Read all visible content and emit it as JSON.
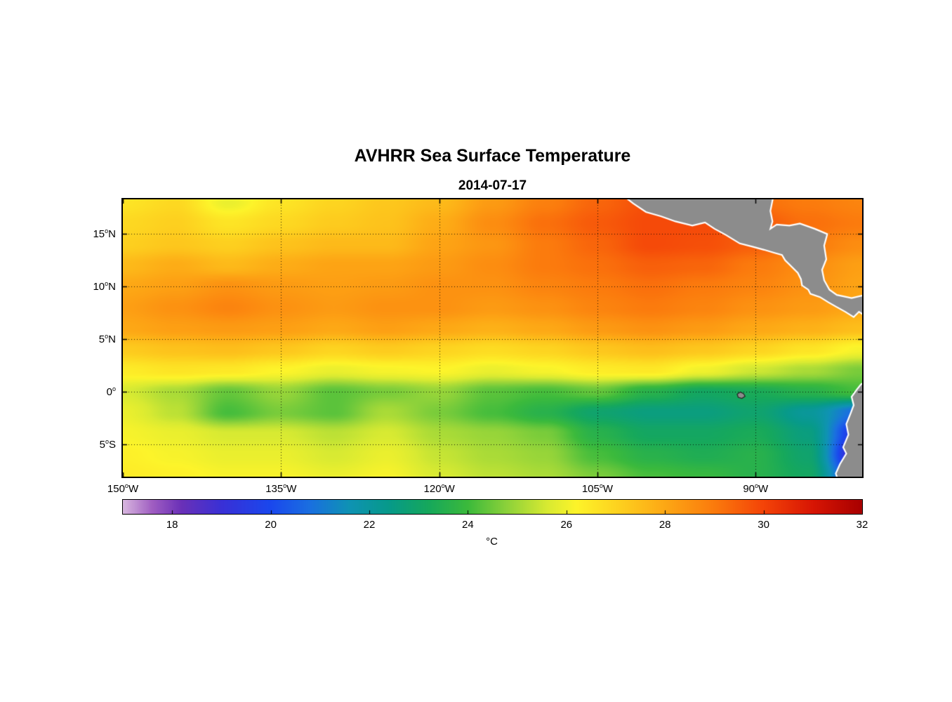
{
  "chart_data": {
    "type": "heatmap",
    "title": "AVHRR Sea Surface Temperature",
    "subtitle": "2014-07-17",
    "lon_range": [
      -150,
      -79.9
    ],
    "lat_range": [
      -8.1,
      18.3
    ],
    "x_ticks": [
      {
        "value": -150,
        "num": "150",
        "suffix": "W",
        "label": "150°W"
      },
      {
        "value": -135,
        "num": "135",
        "suffix": "W",
        "label": "135°W"
      },
      {
        "value": -120,
        "num": "120",
        "suffix": "W",
        "label": "120°W"
      },
      {
        "value": -105,
        "num": "105",
        "suffix": "W",
        "label": "105°W"
      },
      {
        "value": -90,
        "num": "90",
        "suffix": "W",
        "label": "90°W"
      }
    ],
    "y_ticks": [
      {
        "value": 15,
        "num": "15",
        "suffix": "N",
        "label": "15°N"
      },
      {
        "value": 10,
        "num": "10",
        "suffix": "N",
        "label": "10°N"
      },
      {
        "value": 5,
        "num": "5",
        "suffix": "N",
        "label": "5°N"
      },
      {
        "value": 0,
        "num": "0",
        "suffix": "",
        "label": "0°"
      },
      {
        "value": -5,
        "num": "5",
        "suffix": "S",
        "label": "5°S"
      }
    ],
    "grid_lines": {
      "lon": [
        -135,
        -120,
        -105,
        -90
      ],
      "lat": [
        15,
        10,
        5,
        0,
        -5
      ]
    },
    "grid": {
      "lon": [
        -150,
        -145,
        -140,
        -135,
        -130,
        -125,
        -120,
        -115,
        -110,
        -105,
        -100,
        -95,
        -90,
        -85,
        -80
      ],
      "lat": [
        18,
        16,
        14,
        12,
        10,
        8,
        6,
        4,
        2,
        0,
        -2,
        -4,
        -6,
        -8
      ],
      "units": "°C",
      "sst_c": [
        [
          26.6,
          26.9,
          25.9,
          26.6,
          27.0,
          27.3,
          27.6,
          28.3,
          28.9,
          29.4,
          29.8,
          29.6,
          29.2,
          29.0,
          28.8
        ],
        [
          26.9,
          27.1,
          26.6,
          26.9,
          27.2,
          27.4,
          27.9,
          28.6,
          29.2,
          29.6,
          29.9,
          29.9,
          29.6,
          29.2,
          29.0
        ],
        [
          27.1,
          27.3,
          27.1,
          27.4,
          27.6,
          27.6,
          28.1,
          28.4,
          29.0,
          29.4,
          29.9,
          29.8,
          29.5,
          29.0,
          28.6
        ],
        [
          27.6,
          27.9,
          27.6,
          27.9,
          28.1,
          28.1,
          28.3,
          28.6,
          29.0,
          29.2,
          29.5,
          29.4,
          29.0,
          28.6,
          28.2
        ],
        [
          28.0,
          28.2,
          28.5,
          28.3,
          28.2,
          28.3,
          28.5,
          28.5,
          28.8,
          29.0,
          29.2,
          29.0,
          28.8,
          28.5,
          28.1
        ],
        [
          28.2,
          28.5,
          28.8,
          28.5,
          28.3,
          28.5,
          28.5,
          28.3,
          28.5,
          28.8,
          29.0,
          28.8,
          28.5,
          28.3,
          28.0
        ],
        [
          28.0,
          28.2,
          28.3,
          28.2,
          28.0,
          28.2,
          28.0,
          27.8,
          28.0,
          28.3,
          28.5,
          28.3,
          28.0,
          27.8,
          27.5
        ],
        [
          27.2,
          27.4,
          27.5,
          27.3,
          27.0,
          27.2,
          27.0,
          26.8,
          27.0,
          27.3,
          27.5,
          27.3,
          27.0,
          26.6,
          26.1
        ],
        [
          26.4,
          26.6,
          26.5,
          26.2,
          25.9,
          26.1,
          26.2,
          25.9,
          26.1,
          26.4,
          26.5,
          26.0,
          25.5,
          25.1,
          24.6
        ],
        [
          25.6,
          25.1,
          24.4,
          24.9,
          24.3,
          24.6,
          24.9,
          24.3,
          24.1,
          24.4,
          23.6,
          23.1,
          23.3,
          23.6,
          24.1
        ],
        [
          25.9,
          25.3,
          24.1,
          24.6,
          24.3,
          25.1,
          24.6,
          24.1,
          23.6,
          22.9,
          22.6,
          22.6,
          22.9,
          22.1,
          20.6
        ],
        [
          26.1,
          25.9,
          25.6,
          25.6,
          25.3,
          25.6,
          25.1,
          24.9,
          24.6,
          23.6,
          23.1,
          23.1,
          23.3,
          22.6,
          19.1
        ],
        [
          26.3,
          26.1,
          25.9,
          25.9,
          25.6,
          25.9,
          25.4,
          25.1,
          24.9,
          24.1,
          23.6,
          23.4,
          23.6,
          22.9,
          18.1
        ],
        [
          26.4,
          26.3,
          26.1,
          26.1,
          25.9,
          26.1,
          25.6,
          25.3,
          25.1,
          24.6,
          24.1,
          23.9,
          23.6,
          23.1,
          19.1
        ]
      ]
    },
    "colormap": [
      [
        17.0,
        "#d9b8e0"
      ],
      [
        17.6,
        "#a05ec2"
      ],
      [
        18.2,
        "#6a30b8"
      ],
      [
        19.0,
        "#3a30d6"
      ],
      [
        20.0,
        "#1a48ee"
      ],
      [
        20.8,
        "#1a70e0"
      ],
      [
        21.6,
        "#0f93b4"
      ],
      [
        22.4,
        "#079a8a"
      ],
      [
        23.2,
        "#16a85c"
      ],
      [
        24.0,
        "#3cba3c"
      ],
      [
        24.8,
        "#8ed23a"
      ],
      [
        25.6,
        "#d8ea32"
      ],
      [
        26.2,
        "#fdf42a"
      ],
      [
        27.0,
        "#fdd420"
      ],
      [
        28.0,
        "#fda815"
      ],
      [
        29.0,
        "#fb7b0d"
      ],
      [
        30.0,
        "#f44408"
      ],
      [
        31.0,
        "#d81604"
      ],
      [
        32.0,
        "#a80000"
      ]
    ],
    "colorbar": {
      "min": 17,
      "max": 32,
      "tick_values": [
        18,
        20,
        22,
        24,
        26,
        28,
        30,
        32
      ],
      "label": "°C",
      "orientation": "horizontal"
    },
    "land": {
      "fill": "#8c8c8c",
      "coast": "#ffffff",
      "polygons": [
        [
          [
            -102.6,
            18.7
          ],
          [
            -101.6,
            17.9
          ],
          [
            -100.4,
            17.1
          ],
          [
            -99.0,
            16.7
          ],
          [
            -97.6,
            16.2
          ],
          [
            -96.0,
            15.8
          ],
          [
            -94.8,
            16.1
          ],
          [
            -93.9,
            15.5
          ],
          [
            -92.8,
            14.9
          ],
          [
            -91.5,
            14.1
          ],
          [
            -90.3,
            13.8
          ],
          [
            -89.2,
            13.5
          ],
          [
            -88.2,
            13.2
          ],
          [
            -87.5,
            13.0
          ],
          [
            -87.2,
            12.5
          ],
          [
            -86.6,
            11.9
          ],
          [
            -86.0,
            11.3
          ],
          [
            -85.7,
            10.7
          ],
          [
            -85.6,
            10.1
          ],
          [
            -85.0,
            9.7
          ],
          [
            -84.8,
            9.3
          ],
          [
            -83.9,
            9.0
          ],
          [
            -83.1,
            8.5
          ],
          [
            -82.4,
            8.1
          ],
          [
            -81.5,
            7.6
          ],
          [
            -80.7,
            7.1
          ],
          [
            -80.2,
            7.6
          ],
          [
            -79.6,
            7.2
          ],
          [
            -79.2,
            7.6
          ],
          [
            -79.2,
            9.3
          ],
          [
            -80.9,
            8.9
          ],
          [
            -82.3,
            9.2
          ],
          [
            -83.0,
            9.7
          ],
          [
            -83.5,
            10.6
          ],
          [
            -83.7,
            11.6
          ],
          [
            -83.3,
            12.6
          ],
          [
            -83.5,
            13.9
          ],
          [
            -83.2,
            15.0
          ],
          [
            -84.4,
            15.5
          ],
          [
            -85.8,
            16.0
          ],
          [
            -86.8,
            15.8
          ],
          [
            -88.0,
            15.9
          ],
          [
            -88.6,
            15.5
          ],
          [
            -88.4,
            16.2
          ],
          [
            -88.6,
            17.2
          ],
          [
            -88.3,
            18.7
          ]
        ],
        [
          [
            -79.3,
            1.1
          ],
          [
            -80.0,
            0.7
          ],
          [
            -80.4,
            0.2
          ],
          [
            -80.9,
            -0.5
          ],
          [
            -80.7,
            -1.3
          ],
          [
            -81.0,
            -2.1
          ],
          [
            -81.4,
            -3.1
          ],
          [
            -81.2,
            -4.1
          ],
          [
            -81.7,
            -5.3
          ],
          [
            -81.4,
            -5.9
          ],
          [
            -82.0,
            -6.9
          ],
          [
            -82.4,
            -7.8
          ],
          [
            -82.2,
            -8.4
          ],
          [
            -79.3,
            -8.4
          ]
        ]
      ],
      "island": {
        "name": "Galapagos",
        "points": [
          [
            -91.75,
            -0.25
          ],
          [
            -91.45,
            -0.05
          ],
          [
            -91.15,
            -0.2
          ],
          [
            -91.0,
            -0.45
          ],
          [
            -91.3,
            -0.65
          ],
          [
            -91.65,
            -0.55
          ]
        ]
      }
    }
  }
}
